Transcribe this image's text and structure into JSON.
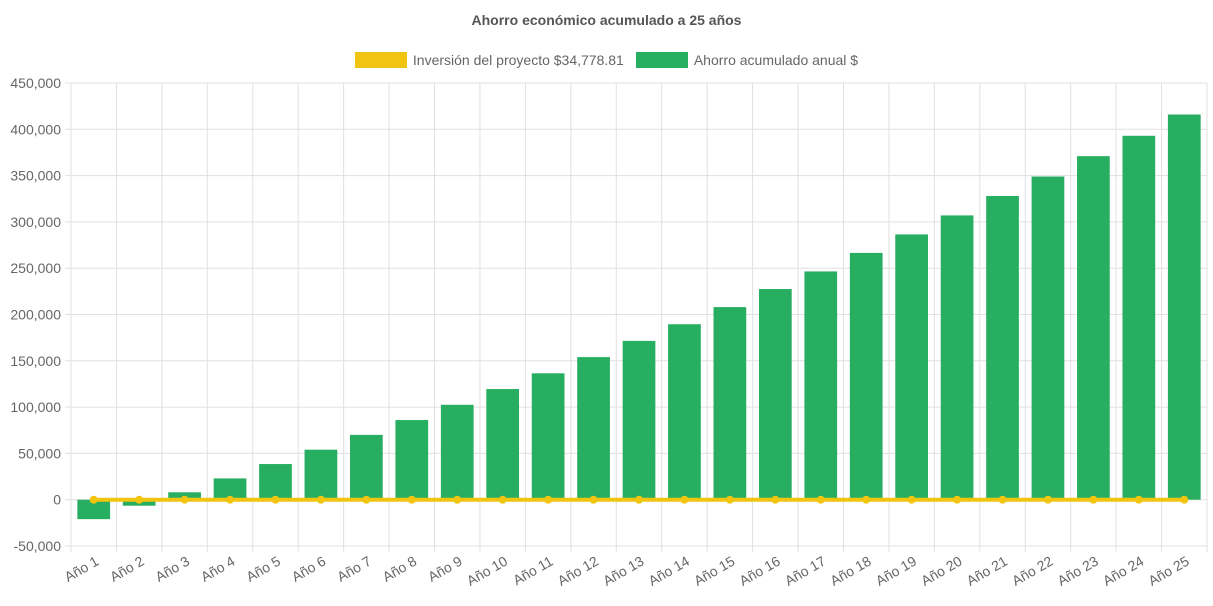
{
  "chart_data": {
    "type": "bar",
    "title": "Ahorro económico acumulado a 25 años",
    "categories": [
      "Año 1",
      "Año 2",
      "Año 3",
      "Año 4",
      "Año 5",
      "Año 6",
      "Año 7",
      "Año 8",
      "Año 9",
      "Año 10",
      "Año 11",
      "Año 12",
      "Año 13",
      "Año 14",
      "Año 15",
      "Año 16",
      "Año 17",
      "Año 18",
      "Año 19",
      "Año 20",
      "Año 21",
      "Año 22",
      "Año 23",
      "Año 24",
      "Año 25"
    ],
    "series": [
      {
        "name": "Inversión del proyecto $34,778.81",
        "type": "line",
        "color": "#f1c40f",
        "values": [
          0,
          0,
          0,
          0,
          0,
          0,
          0,
          0,
          0,
          0,
          0,
          0,
          0,
          0,
          0,
          0,
          0,
          0,
          0,
          0,
          0,
          0,
          0,
          0,
          0
        ]
      },
      {
        "name": "Ahorro acumulado anual $",
        "type": "bar",
        "color": "#27ae60",
        "values": [
          -21000,
          -6500,
          8000,
          23000,
          38500,
          54000,
          70000,
          86000,
          102500,
          119500,
          136500,
          154000,
          171500,
          189500,
          208000,
          227500,
          246500,
          266500,
          286500,
          307000,
          328000,
          349000,
          371000,
          393000,
          416000
        ]
      }
    ],
    "ylim": [
      -50000,
      450000
    ],
    "yticks": [
      -50000,
      0,
      50000,
      100000,
      150000,
      200000,
      250000,
      300000,
      350000,
      400000,
      450000
    ],
    "ytick_labels": [
      "-50,000",
      "0",
      "50,000",
      "100,000",
      "150,000",
      "200,000",
      "250,000",
      "300,000",
      "350,000",
      "400,000",
      "450,000"
    ],
    "grid": true,
    "legend_position": "top-center"
  }
}
